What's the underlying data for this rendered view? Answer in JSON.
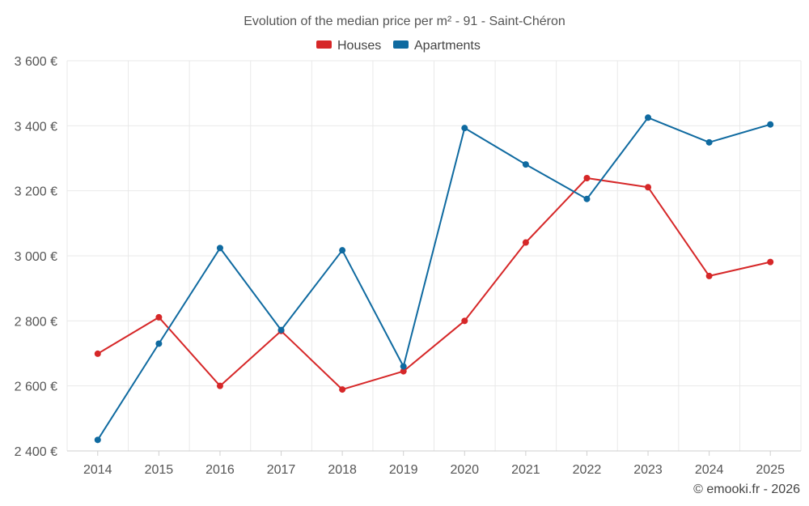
{
  "chart_data": {
    "type": "line",
    "title": "Evolution of the median price per m² - 91 - Saint-Chéron",
    "categories": [
      "2014",
      "2015",
      "2016",
      "2017",
      "2018",
      "2019",
      "2020",
      "2021",
      "2022",
      "2023",
      "2024",
      "2025"
    ],
    "series": [
      {
        "name": "Houses",
        "color": "#d62728",
        "values": [
          2699,
          2811,
          2600,
          2769,
          2589,
          2645,
          2800,
          3041,
          3239,
          3211,
          2938,
          2981
        ]
      },
      {
        "name": "Apartments",
        "color": "#0f6aa0",
        "values": [
          2434,
          2730,
          3024,
          2772,
          3017,
          2660,
          3393,
          3281,
          3175,
          3425,
          3349,
          3404
        ]
      }
    ],
    "ylim": [
      2400,
      3600
    ],
    "yticks": [
      2400,
      2600,
      2800,
      3000,
      3200,
      3400,
      3600
    ],
    "ytick_labels": [
      "2 400 €",
      "2 600 €",
      "2 800 €",
      "3 000 €",
      "3 200 €",
      "3 400 €",
      "3 600 €"
    ],
    "grid": true,
    "legend_position": "top-center"
  },
  "credit": "© emooki.fr - 2026"
}
